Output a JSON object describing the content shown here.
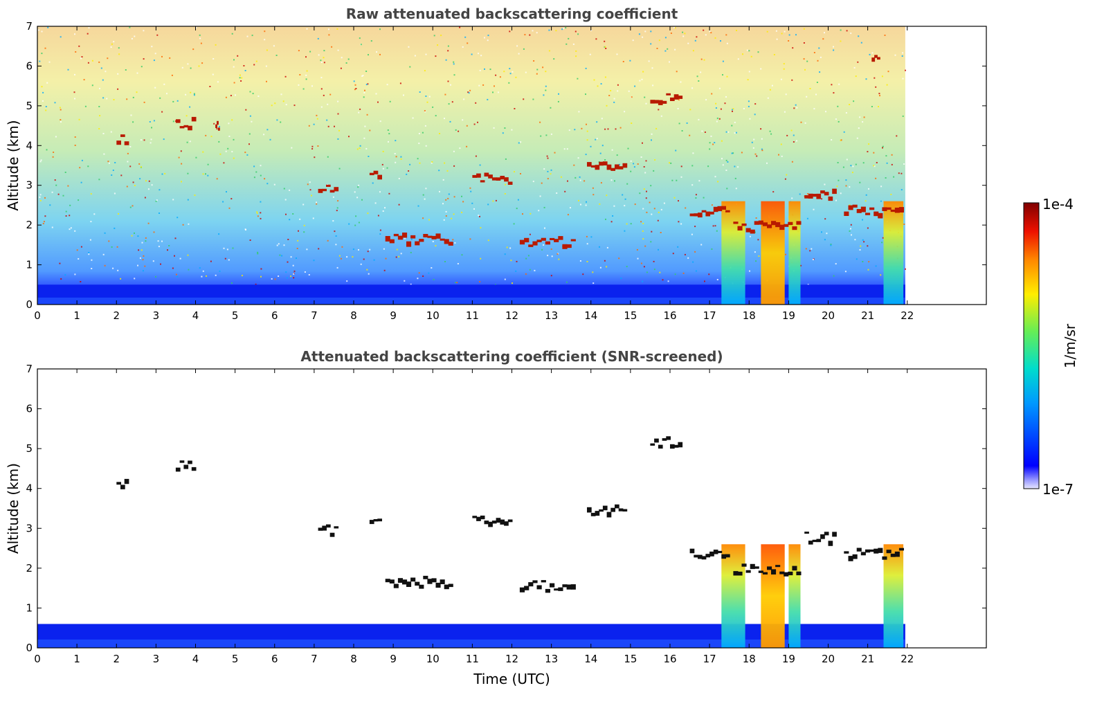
{
  "chart_data": [
    {
      "type": "heatmap",
      "title": "Raw attenuated backscattering coefficient",
      "xlabel": "",
      "ylabel": "Altitude (km)",
      "xlim": [
        0,
        24
      ],
      "ylim": [
        0,
        7
      ],
      "x_ticks": [
        "0",
        "1",
        "2",
        "3",
        "4",
        "5",
        "6",
        "7",
        "8",
        "9",
        "10",
        "11",
        "12",
        "13",
        "14",
        "15",
        "16",
        "17",
        "18",
        "19",
        "20",
        "21",
        "22"
      ],
      "y_ticks": [
        "0",
        "1",
        "2",
        "3",
        "4",
        "5",
        "6",
        "7"
      ],
      "data_extent_time": [
        0,
        21.95
      ],
      "boundary_layer_top_km": 0.5,
      "cloud_segments": [
        {
          "t0": 2.0,
          "t1": 2.3,
          "alt": 4.2
        },
        {
          "t0": 3.5,
          "t1": 4.0,
          "alt": 4.6
        },
        {
          "t0": 4.5,
          "t1": 4.6,
          "alt": 4.5
        },
        {
          "t0": 7.1,
          "t1": 7.6,
          "alt": 3.0
        },
        {
          "t0": 8.4,
          "t1": 8.7,
          "alt": 3.3
        },
        {
          "t0": 8.8,
          "t1": 10.5,
          "alt": 1.7
        },
        {
          "t0": 11.0,
          "t1": 12.0,
          "alt": 3.2
        },
        {
          "t0": 12.2,
          "t1": 13.6,
          "alt": 1.6
        },
        {
          "t0": 13.9,
          "t1": 14.9,
          "alt": 3.5
        },
        {
          "t0": 15.5,
          "t1": 16.3,
          "alt": 5.2
        },
        {
          "t0": 16.5,
          "t1": 17.5,
          "alt": 2.4
        },
        {
          "t0": 17.6,
          "t1": 19.3,
          "alt": 2.0
        },
        {
          "t0": 19.4,
          "t1": 20.2,
          "alt": 2.8
        },
        {
          "t0": 20.4,
          "t1": 21.9,
          "alt": 2.4
        },
        {
          "t0": 21.1,
          "t1": 21.3,
          "alt": 6.2
        }
      ],
      "precip_columns": [
        {
          "t0": 17.3,
          "t1": 17.9
        },
        {
          "t0": 18.3,
          "t1": 18.9
        },
        {
          "t0": 19.0,
          "t1": 19.3
        },
        {
          "t0": 21.4,
          "t1": 21.9
        }
      ]
    },
    {
      "type": "heatmap",
      "title": "Attenuated backscattering coefficient (SNR-screened)",
      "xlabel": "Time (UTC)",
      "ylabel": "Altitude (km)",
      "xlim": [
        0,
        24
      ],
      "ylim": [
        0,
        7
      ],
      "x_ticks": [
        "0",
        "1",
        "2",
        "3",
        "4",
        "5",
        "6",
        "7",
        "8",
        "9",
        "10",
        "11",
        "12",
        "13",
        "14",
        "15",
        "16",
        "17",
        "18",
        "19",
        "20",
        "21",
        "22"
      ],
      "y_ticks": [
        "0",
        "1",
        "2",
        "3",
        "4",
        "5",
        "6",
        "7"
      ],
      "data_extent_time": [
        0,
        21.95
      ],
      "boundary_layer_top_km": 0.6,
      "cloud_segments": [
        {
          "t0": 2.0,
          "t1": 2.3,
          "alt": 4.2
        },
        {
          "t0": 3.5,
          "t1": 4.0,
          "alt": 4.6
        },
        {
          "t0": 7.1,
          "t1": 7.6,
          "alt": 3.0
        },
        {
          "t0": 8.4,
          "t1": 8.7,
          "alt": 3.3
        },
        {
          "t0": 8.8,
          "t1": 10.5,
          "alt": 1.7
        },
        {
          "t0": 11.0,
          "t1": 12.0,
          "alt": 3.2
        },
        {
          "t0": 12.2,
          "t1": 13.6,
          "alt": 1.6
        },
        {
          "t0": 13.9,
          "t1": 14.9,
          "alt": 3.5
        },
        {
          "t0": 15.5,
          "t1": 16.3,
          "alt": 5.2
        },
        {
          "t0": 16.5,
          "t1": 17.5,
          "alt": 2.4
        },
        {
          "t0": 17.6,
          "t1": 19.3,
          "alt": 2.0
        },
        {
          "t0": 19.4,
          "t1": 20.2,
          "alt": 2.8
        },
        {
          "t0": 20.4,
          "t1": 21.9,
          "alt": 2.4
        }
      ],
      "precip_columns": [
        {
          "t0": 17.3,
          "t1": 17.9
        },
        {
          "t0": 18.3,
          "t1": 18.9
        },
        {
          "t0": 19.0,
          "t1": 19.3
        },
        {
          "t0": 21.4,
          "t1": 21.9
        }
      ]
    }
  ],
  "colorbar": {
    "label": "1/m/sr",
    "max_label": "1e-4",
    "min_label": "1e-7",
    "range": [
      "1e-7",
      "1e-4"
    ],
    "scale": "log"
  },
  "colors": {
    "low": "#0000ff",
    "mid": "#00dd88",
    "high": "#ff0000",
    "cloud": "#b81a00"
  }
}
